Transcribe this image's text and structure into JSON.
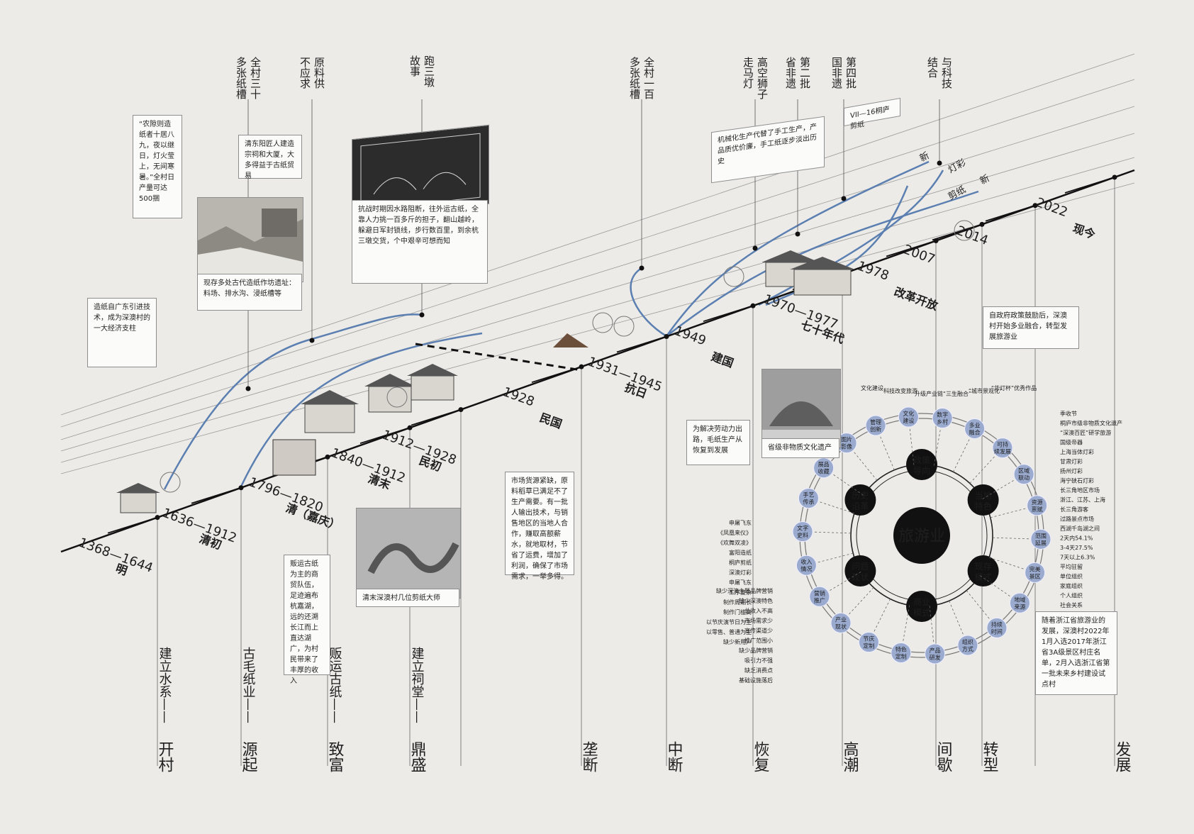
{
  "eras": [
    {
      "date": "1368—1644",
      "dyn": "明",
      "stage": "开村",
      "theme": "建立水系"
    },
    {
      "date": "1636—1912",
      "dyn": "清初",
      "stage": "源起",
      "theme": "古毛纸业"
    },
    {
      "date": "1796—1820",
      "dyn": "清（嘉庆）",
      "stage": "致富",
      "theme": "贩运古纸"
    },
    {
      "date": "1840—1912",
      "dyn": "清末",
      "stage": "鼎盛",
      "theme": "建立祠堂"
    },
    {
      "date": "1912—1928",
      "dyn": "民初",
      "stage": "",
      "theme": ""
    },
    {
      "date": "1928",
      "dyn": "民国",
      "stage": "垄断",
      "theme": ""
    },
    {
      "date": "1931—1945",
      "dyn": "抗日",
      "stage": "中断",
      "theme": ""
    },
    {
      "date": "1949",
      "dyn": "建国",
      "stage": "恢复",
      "theme": ""
    },
    {
      "date": "1970—1977",
      "dyn": "七十年代",
      "stage": "高潮",
      "theme": ""
    },
    {
      "date": "1978",
      "dyn": "改革开放",
      "stage": "间歇",
      "theme": ""
    },
    {
      "date": "2007",
      "dyn": "",
      "stage": "转型",
      "theme": ""
    },
    {
      "date": "2014",
      "dyn": "",
      "stage": "",
      "theme": ""
    },
    {
      "date": "2022",
      "dyn": "现今",
      "stage": "发展",
      "theme": ""
    }
  ],
  "top_labels": [
    "全村三十多张纸槽",
    "原料供不应求",
    "跑三墩故事",
    "全村一百多张纸槽",
    "高空狮子走马灯",
    "第二批省非遗",
    "第四批国非遗",
    "与科技结合"
  ],
  "notes": {
    "n1": "“农隙则造纸者十居八九，夜以继日，灯火莹上，无间寒暑。”全村日产量可达500捆",
    "n2": "清东阳匠人建造宗祠和大厦，大多得益于古纸贸易",
    "n3": "造纸自广东引进技术，成为深澳村的一大经济支柱",
    "n4": "现存多处古代造纸作坊遗址：料场、排水沟、浸纸槽等",
    "n5": "抗战时期因水路阻断，往外运古纸，全靠人力挑一百多斤的担子，翻山越岭，躲避日军封锁线，步行数百里，到余杭三墩交货，个中艰辛可想而知",
    "n6": "机械化生产代替了手工生产，产品质优价廉，手工纸逐步淡出历史",
    "n7": "VII—16桐庐剪纸",
    "n8": "为解决劳动力出路，毛纸生产从恢复到发展",
    "n9": "省级非物质文化遗产",
    "n10": "自政府政策鼓励后，深澳村开始多业融合，转型发展旅游业",
    "n11": "贩运古纸为主的商贸队伍，足迹遍布杭嘉湖，远的还溯长江而上直达湖广，为村民带来了丰厚的收入",
    "n12": "市场货源紧缺，原料稻草已满足不了生产需要。有一批人输出技术，与销售地区的当地人合作，赚取高额薪水，就地取材，节省了运费，增加了利润，确保了市场需求，一举多得。",
    "n13": "清末深澳村几位剪纸大师",
    "n14": "随着浙江省旅游业的发展，深澳村2022年1月入选2017年浙江省3A级景区村庄名单，2月入选浙江省第一批未来乡村建设试点村"
  },
  "curve_labels": [
    "新",
    "灯彩",
    "新",
    "剪纸"
  ],
  "wheel": {
    "center": "旅游业",
    "inner": [
      "政策导向",
      "当地特色",
      "现存模式",
      "商业模式",
      "问题现状",
      "历史沿革"
    ],
    "outer": [
      "数字乡村",
      "多业融合",
      "可持续发展",
      "区域联动",
      "资源禀赋",
      "范围延展",
      "完美景区",
      "地域来源",
      "持续时间",
      "组织方式",
      "产品研发",
      "特色定制",
      "节庆定制",
      "产业现状",
      "营销推广",
      "收入情况",
      "文字史料",
      "手艺传承",
      "展品收藏",
      "图片影像",
      "管理创新",
      "文化建设"
    ],
    "tags": [
      "文化建设",
      "科技改变旅游",
      "升级产业链",
      "“三生融合”",
      "“城市景观化”",
      "“华灯杯”优秀作品",
      "申屠飞东",
      "《凤凰来仪》",
      "《欢舞双凌》",
      "富阳造纸",
      "桐庐剪纸",
      "深澳灯彩",
      "申屠飞东",
      "工序复杂",
      "制作周期长",
      "制作门槛高",
      "以节庆演节日为主",
      "以零售、普通为主",
      "缺少新用户",
      "缺少深澳主题品牌营销",
      "缺少深澳特色",
      "总收入不高",
      "市场需求少",
      "宣传渠道少",
      "推广范围小",
      "缺少品牌营销",
      "吸引力不强",
      "缺乏消费点",
      "基础设施落后",
      "季收节",
      "桐庐市级非物质文化遗产",
      "“深澳百匠”研学旅游",
      "国级帝器",
      "上海当体灯彩",
      "甘肃灯彩",
      "扬州灯彩",
      "海宁硖石灯彩",
      "长三角地区市场",
      "浙江、江苏、上海",
      "长三角游客",
      "过路景点市场",
      "西湖千岛湖之间",
      "2天内54.1%",
      "3-4天27.5%",
      "7天以上6.3%",
      "平均驻留",
      "单位组织",
      "家庭组织",
      "个人组织",
      "社会关系"
    ]
  },
  "colors": {
    "curve": "#5b7fb0",
    "bubble": "#9aabcf",
    "ink": "#111111",
    "paper": "#ecebe8"
  }
}
